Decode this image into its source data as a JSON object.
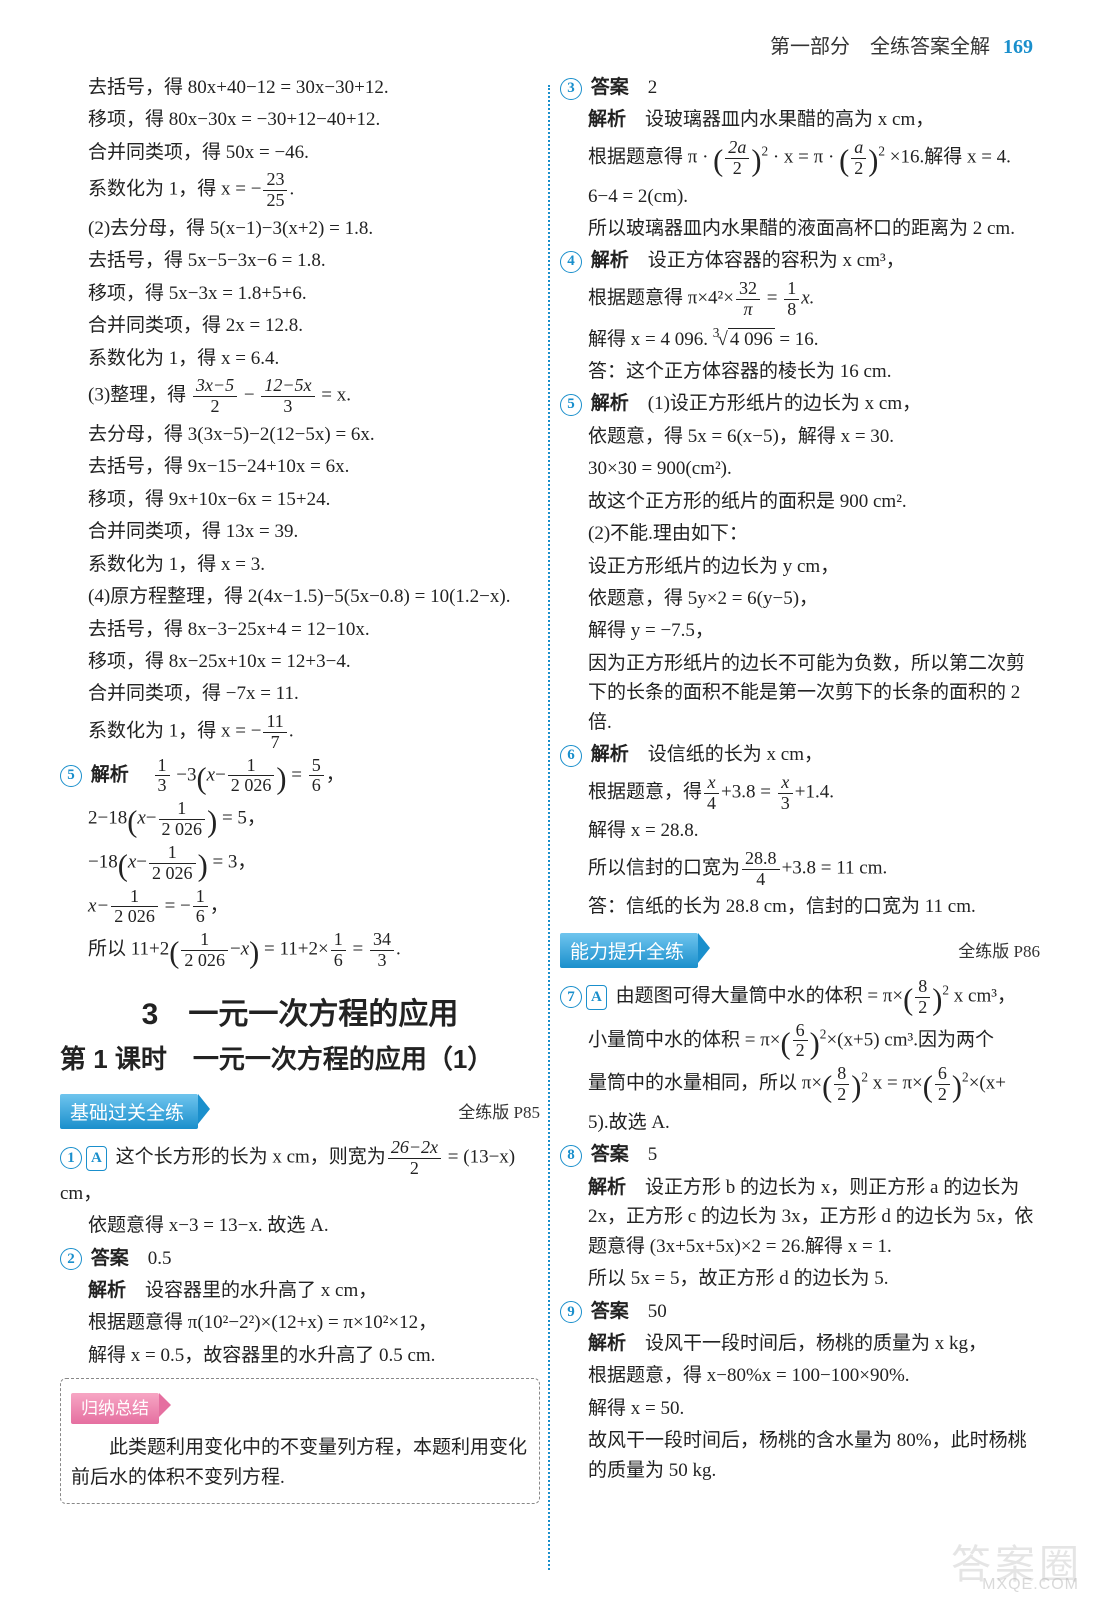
{
  "header": {
    "part": "第一部分　全练答案全解",
    "page": "169"
  },
  "left": {
    "l01": "去括号，得 80x+40−12 = 30x−30+12.",
    "l02": "移项，得 80x−30x = −30+12−40+12.",
    "l03": "合并同类项，得 50x = −46.",
    "l04a": "系数化为 1，得 x = −",
    "l04n": "23",
    "l04d": "25",
    "l04b": ".",
    "l05": "(2)去分母，得 5(x−1)−3(x+2) = 1.8.",
    "l06": "去括号，得 5x−5−3x−6 = 1.8.",
    "l07": "移项，得 5x−3x = 1.8+5+6.",
    "l08": "合并同类项，得 2x = 12.8.",
    "l09": "系数化为 1，得 x = 6.4.",
    "l10a": "(3)整理，得",
    "l10n1": "3x−5",
    "l10d1": "2",
    "l10m": "−",
    "l10n2": "12−5x",
    "l10d2": "3",
    "l10b": "= x.",
    "l11": "去分母，得 3(3x−5)−2(12−5x) = 6x.",
    "l12": "去括号，得 9x−15−24+10x = 6x.",
    "l13": "移项，得 9x+10x−6x = 15+24.",
    "l14": "合并同类项，得 13x = 39.",
    "l15": "系数化为 1，得 x = 3.",
    "l16": "(4)原方程整理，得 2(4x−1.5)−5(5x−0.8) = 10(1.2−x).",
    "l17": "去括号，得 8x−3−25x+4 = 12−10x.",
    "l18": "移项，得 8x−25x+10x = 12+3−4.",
    "l19": "合并同类项，得 −7x = 11.",
    "l20a": "系数化为 1，得 x = −",
    "l20n": "11",
    "l20d": "7",
    "l20b": ".",
    "q5": "5",
    "q5kw": "解析",
    "l21a": "",
    "l21n1": "1",
    "l21d1": "3",
    "l21m1": "−3",
    "l21n2": "1",
    "l21d2": "2 026",
    "l21m2": " = ",
    "l21n3": "5",
    "l21d3": "6",
    "l21b": "，",
    "l22a": "2−18",
    "l22n": "1",
    "l22d": "2 026",
    "l22b": " = 5，",
    "l23a": "−18",
    "l23n": "1",
    "l23d": "2 026",
    "l23b": " = 3，",
    "l24a": "x−",
    "l24n": "1",
    "l24d": "2 026",
    "l24m": " = −",
    "l24n2": "1",
    "l24d2": "6",
    "l24b": "，",
    "l25a": "所以 11+2",
    "l25n": "1",
    "l25d": "2 026",
    "l25m": " = 11+2×",
    "l25n2": "1",
    "l25d2": "6",
    "l25e": " = ",
    "l25n3": "34",
    "l25d3": "3",
    "l25b": ".",
    "sec_title": "3　一元一次方程的应用",
    "lesson": "第 1 课时　一元一次方程的应用（1）",
    "chip1": "基础过关全练",
    "ref1": "全练版 P85",
    "q1": "1",
    "q1a": "A",
    "q1l1a": "这个长方形的长为 x cm，则宽为",
    "q1n": "26−2x",
    "q1d": "2",
    "q1l1b": " = (13−x) cm，",
    "q1l2": "依题意得 x−3 = 13−x. 故选 A.",
    "q2": "2",
    "q2kw": "答案",
    "q2ans": "0.5",
    "q2kw2": "解析",
    "q2l1": "设容器里的水升高了 x cm，",
    "q2l2": "根据题意得 π(10²−2²)×(12+x) = π×10²×12，",
    "q2l3": "解得 x = 0.5，故容器里的水升高了 0.5 cm.",
    "chip2": "归纳总结",
    "sum": "　　此类题利用变化中的不变量列方程，本题利用变化前后水的体积不变列方程."
  },
  "right": {
    "q3": "3",
    "q3kw": "答案",
    "q3ans": "2",
    "q3kw2": "解析",
    "q3l1": "设玻璃器皿内水果醋的高为 x cm，",
    "q3l2a": "根据题意得 π · ",
    "q3n1": "2a",
    "q3d1": "2",
    "q3l2b": " · x = π · ",
    "q3n2": "a",
    "q3d2": "2",
    "q3l2c": " ×16.解得 x = 4.",
    "q3l3": "6−4 = 2(cm).",
    "q3l4": "所以玻璃器皿内水果醋的液面高杯口的距离为 2 cm.",
    "q4": "4",
    "q4kw": "解析",
    "q4l1": "设正方体容器的容积为 x cm³，",
    "q4l2a": "根据题意得 π×4²×",
    "q4n1": "32",
    "q4d1": "π",
    "q4l2b": " = ",
    "q4n2": "1",
    "q4d2": "8",
    "q4l2c": "x.",
    "q4l3a": "解得 x = 4 096. ",
    "q4root": "4 096",
    "q4l3b": " = 16.",
    "q4l4": "答：这个正方体容器的棱长为 16 cm.",
    "q5": "5",
    "q5kw": "解析",
    "q5l1": "(1)设正方形纸片的边长为 x cm，",
    "q5l2": "依题意，得 5x = 6(x−5)，解得 x = 30.",
    "q5l3": "30×30 = 900(cm²).",
    "q5l4": "故这个正方形的纸片的面积是 900 cm².",
    "q5l5": "(2)不能.理由如下：",
    "q5l6": "设正方形纸片的边长为 y cm，",
    "q5l7": "依题意，得 5y×2 = 6(y−5)，",
    "q5l8": "解得 y = −7.5，",
    "q5l9": "因为正方形纸片的边长不可能为负数，所以第二次剪下的长条的面积不能是第一次剪下的长条的面积的 2 倍.",
    "q6": "6",
    "q6kw": "解析",
    "q6l1": "设信纸的长为 x cm，",
    "q6l2a": "根据题意，得",
    "q6n1": "x",
    "q6d1": "4",
    "q6l2b": "+3.8 = ",
    "q6n2": "x",
    "q6d2": "3",
    "q6l2c": "+1.4.",
    "q6l3": "解得 x = 28.8.",
    "q6l4a": "所以信封的口宽为",
    "q6n3": "28.8",
    "q6d3": "4",
    "q6l4b": "+3.8 = 11 cm.",
    "q6l5": "答：信纸的长为 28.8 cm，信封的口宽为 11 cm.",
    "chip": "能力提升全练",
    "ref": "全练版 P86",
    "q7": "7",
    "q7a": "A",
    "q7l1a": "由题图可得大量筒中水的体积 = π×",
    "q7n1": "8",
    "q7d1": "2",
    "q7l1b": " x cm³，",
    "q7l2a": "小量筒中水的体积 = π×",
    "q7n2": "6",
    "q7d2": "2",
    "q7l2b": "×(x+5) cm³.因为两个",
    "q7l3a": "量筒中的水量相同，所以 π×",
    "q7n3": "8",
    "q7d3": "2",
    "q7l3b": " x = π×",
    "q7n4": "6",
    "q7d4": "2",
    "q7l3c": "×(x+",
    "q7l4": "5).故选 A.",
    "q8": "8",
    "q8kw": "答案",
    "q8ans": "5",
    "q8kw2": "解析",
    "q8l1": "设正方形 b 的边长为 x，则正方形 a 的边长为 2x，正方形 c 的边长为 3x，正方形 d 的边长为 5x，依题意得 (3x+5x+5x)×2 = 26.解得 x = 1.",
    "q8l3": "所以 5x = 5，故正方形 d 的边长为 5.",
    "q9": "9",
    "q9kw": "答案",
    "q9ans": "50",
    "q9kw2": "解析",
    "q9l1": "设风干一段时间后，杨桃的质量为 x kg，",
    "q9l2": "根据题意，得 x−80%x = 100−100×90%.",
    "q9l3": "解得 x = 50.",
    "q9l4": "故风干一段时间后，杨桃的含水量为 80%，此时杨桃的质量为 50 kg."
  },
  "wm1": "答案圈",
  "wm2": "MXQE.COM"
}
